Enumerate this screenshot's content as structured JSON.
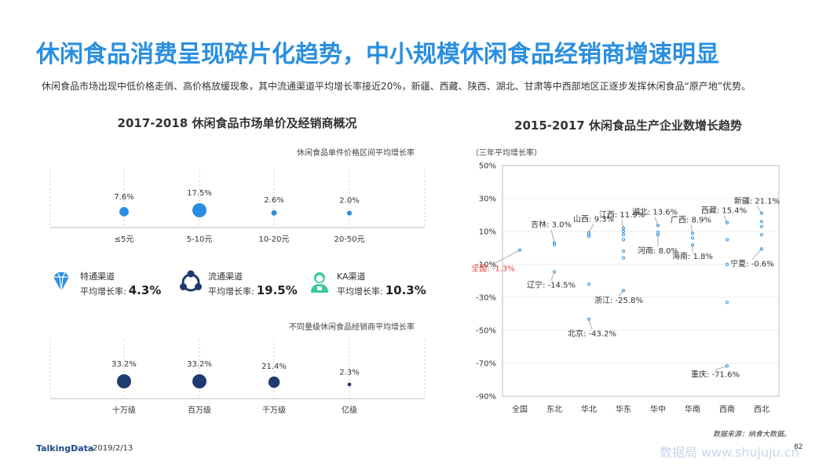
{
  "header": {
    "title": "休闲食品消费呈现碎片化趋势，中小规模休闲食品经销商增速明显",
    "subtitle": "休闲食品市场出现中低价格走俏、高价格放缓现象，其中流通渠道平均增长率接近20%，新疆、西藏、陕西、湖北、甘肃等中西部地区正逐步发挥休闲食品“原产地”优势。"
  },
  "left_panel": {
    "title": "2017-2018  休闲食品市场单价及经销商概况",
    "channels": [
      {
        "name": "特通渠道",
        "label": "平均增长率:",
        "value": "4.3%",
        "icon": "diamond-icon",
        "color": "#2a8fe0"
      },
      {
        "name": "流通渠道",
        "label": "平均增长率:",
        "value": "19.5%",
        "icon": "circulation-icon",
        "color": "#1e3a6e"
      },
      {
        "name": "KA渠道",
        "label": "平均增长率:",
        "value": "10.3%",
        "icon": "staff-icon",
        "color": "#3cc8a0"
      }
    ]
  },
  "right_panel": {
    "title": "2015-2017  休闲食品生产企业数增长趋势",
    "unit_note": "（三年平均增长率）"
  },
  "chart_data": [
    {
      "type": "scatter",
      "title": "休闲食品单件价格区间平均增长率",
      "categories": [
        "≤5元",
        "5-10元",
        "10-20元",
        "20-50元"
      ],
      "values": [
        7.6,
        17.5,
        2.6,
        2.0
      ],
      "labels": [
        "7.6%",
        "17.5%",
        "2.6%",
        "2.0%"
      ],
      "color": "#2a8fe0",
      "encoding": "bubble size"
    },
    {
      "type": "scatter",
      "title": "不同量级休闲食品经销商平均增长率",
      "categories": [
        "十万级",
        "百万级",
        "千万级",
        "亿级"
      ],
      "values": [
        33.2,
        33.2,
        21.4,
        2.3
      ],
      "labels": [
        "33.2%",
        "33.2%",
        "21.4%",
        "2.3%"
      ],
      "color": "#1e3a6e",
      "encoding": "bubble size"
    },
    {
      "type": "scatter",
      "categories": [
        "全国",
        "东北",
        "华北",
        "华东",
        "华中",
        "华南",
        "西南",
        "西北"
      ],
      "ylim": [
        -90,
        50
      ],
      "yticks": [
        "50%",
        "30%",
        "10%",
        "-10%",
        "-30%",
        "-50%",
        "-70%",
        "-90%"
      ],
      "point_color": "#2a8fe0",
      "highlight_color": "#e8413c",
      "points": [
        {
          "c": 0,
          "v": -1.3
        },
        {
          "c": 1,
          "v": 3.0
        },
        {
          "c": 1,
          "v": 2.0
        },
        {
          "c": 1,
          "v": -14.5
        },
        {
          "c": 2,
          "v": 9.3
        },
        {
          "c": 2,
          "v": 8.0
        },
        {
          "c": 2,
          "v": 7.0
        },
        {
          "c": 2,
          "v": -43.2
        },
        {
          "c": 2,
          "v": -22.0
        },
        {
          "c": 3,
          "v": 11.9
        },
        {
          "c": 3,
          "v": 10.0
        },
        {
          "c": 3,
          "v": 8.0
        },
        {
          "c": 3,
          "v": 5.0
        },
        {
          "c": 3,
          "v": -2.0
        },
        {
          "c": 3,
          "v": -6.0
        },
        {
          "c": 3,
          "v": -25.8
        },
        {
          "c": 4,
          "v": 13.6
        },
        {
          "c": 4,
          "v": 9.5
        },
        {
          "c": 4,
          "v": 8.0
        },
        {
          "c": 5,
          "v": 8.9
        },
        {
          "c": 5,
          "v": 6.0
        },
        {
          "c": 5,
          "v": 1.8
        },
        {
          "c": 6,
          "v": 15.4
        },
        {
          "c": 6,
          "v": 5.0
        },
        {
          "c": 6,
          "v": -10.0
        },
        {
          "c": 6,
          "v": -33.0
        },
        {
          "c": 6,
          "v": -71.6
        },
        {
          "c": 7,
          "v": 21.1
        },
        {
          "c": 7,
          "v": 16.0
        },
        {
          "c": 7,
          "v": 13.0
        },
        {
          "c": 7,
          "v": 8.0
        },
        {
          "c": 7,
          "v": -0.6
        }
      ],
      "annotations": [
        {
          "text": "全国: -1.3%",
          "c": 0,
          "v": -1.3,
          "highlight": true
        },
        {
          "text": "吉林: 3.0%",
          "c": 1,
          "v": 3.0
        },
        {
          "text": "辽宁: -14.5%",
          "c": 1,
          "v": -14.5
        },
        {
          "text": "山西: 9.3%",
          "c": 2,
          "v": 9.3
        },
        {
          "text": "北京: -43.2%",
          "c": 2,
          "v": -43.2
        },
        {
          "text": "江西: 11.9%",
          "c": 3,
          "v": 11.9
        },
        {
          "text": "浙江: -25.8%",
          "c": 3,
          "v": -25.8
        },
        {
          "text": "湖北: 13.6%",
          "c": 4,
          "v": 13.6
        },
        {
          "text": "河南: 8.0%",
          "c": 4,
          "v": 8.0
        },
        {
          "text": "广西: 8.9%",
          "c": 5,
          "v": 8.9
        },
        {
          "text": "海南: 1.8%",
          "c": 5,
          "v": 1.8
        },
        {
          "text": "西藏: 15.4%",
          "c": 6,
          "v": 15.4
        },
        {
          "text": "重庆: -71.6%",
          "c": 6,
          "v": -71.6
        },
        {
          "text": "新疆: 21.1%",
          "c": 7,
          "v": 21.1
        },
        {
          "text": "宁夏: -0.6%",
          "c": 7,
          "v": -0.6
        }
      ]
    }
  ],
  "footer": {
    "logo": "TalkingData",
    "date": "2019/2/13",
    "source": "数据来源：纳食大数据。",
    "page": "82",
    "watermark": "数据局 www.shujuju.cn"
  }
}
